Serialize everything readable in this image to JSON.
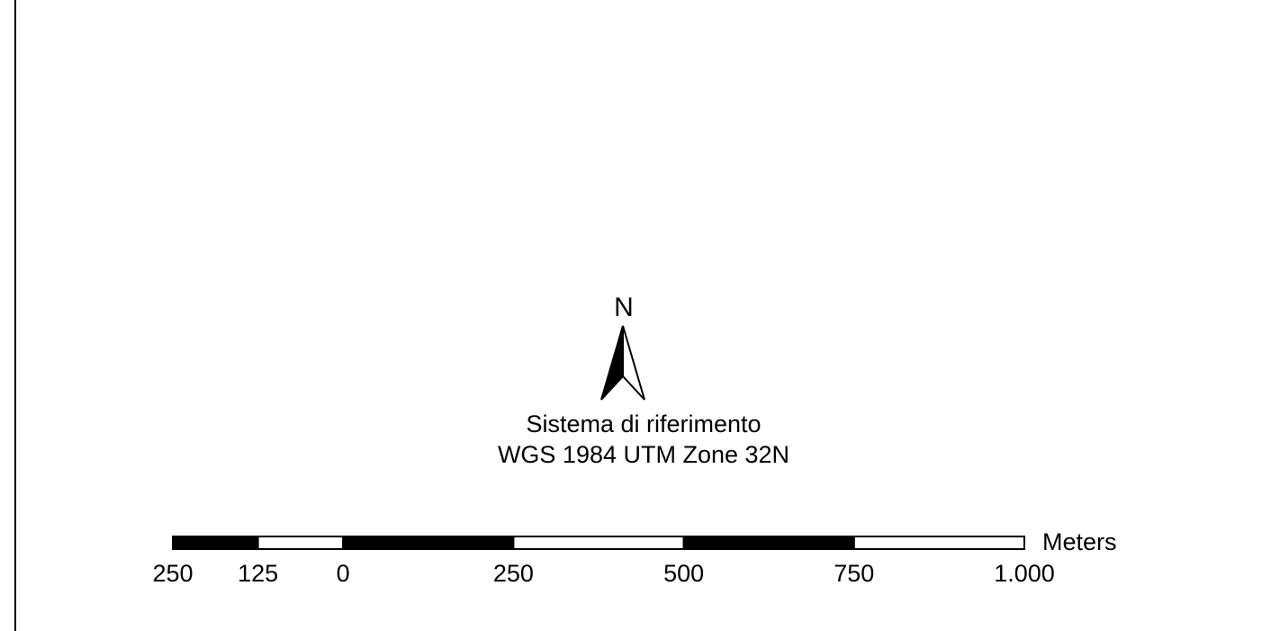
{
  "map": {
    "north_label": "N",
    "reference_title": "Sistema di riferimento",
    "reference_system": "WGS 1984 UTM Zone 32N"
  },
  "scalebar": {
    "unit": "Meters",
    "ticks": [
      {
        "label": "250",
        "value": -250
      },
      {
        "label": "125",
        "value": -125
      },
      {
        "label": "0",
        "value": 0
      },
      {
        "label": "250",
        "value": 250
      },
      {
        "label": "500",
        "value": 500
      },
      {
        "label": "750",
        "value": 750
      },
      {
        "label": "1.000",
        "value": 1000
      }
    ],
    "segments": [
      {
        "from": -250,
        "to": -125,
        "fill": "#000000"
      },
      {
        "from": -125,
        "to": 0,
        "fill": "#ffffff"
      },
      {
        "from": 0,
        "to": 250,
        "fill": "#000000"
      },
      {
        "from": 250,
        "to": 500,
        "fill": "#ffffff"
      },
      {
        "from": 500,
        "to": 750,
        "fill": "#000000"
      },
      {
        "from": 750,
        "to": 1000,
        "fill": "#ffffff"
      }
    ]
  }
}
